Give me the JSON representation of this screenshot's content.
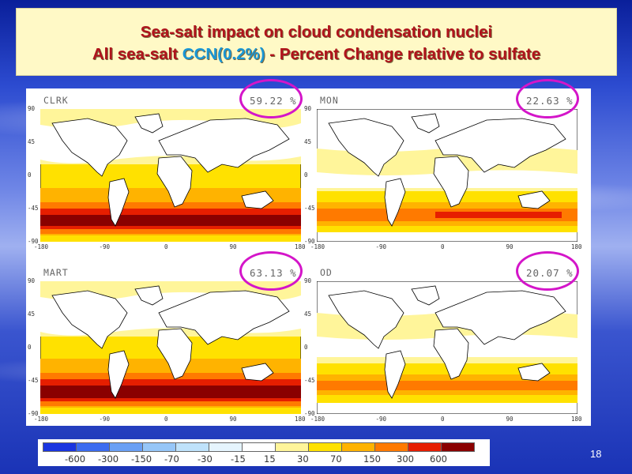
{
  "slide": {
    "title_line1": "Sea-salt impact on cloud condensation nuclei",
    "title_line2_a": "All sea-salt",
    "title_line2_b": "CCN(0.2%)",
    "title_line2_c": " - Percent Change relative to sulfate",
    "page_number": "18"
  },
  "panels": [
    {
      "label": "CLRK",
      "percent": "59.22 %",
      "intensity": "high"
    },
    {
      "label": "MON",
      "percent": "22.63 %",
      "intensity": "low"
    },
    {
      "label": "MART",
      "percent": "63.13 %",
      "intensity": "high"
    },
    {
      "label": "OD",
      "percent": "20.07 %",
      "intensity": "low"
    }
  ],
  "axes": {
    "y_ticks": [
      "90",
      "45",
      "0",
      "-45",
      "-90"
    ],
    "x_ticks": [
      "-180",
      "-90",
      "0",
      "90",
      "180"
    ]
  },
  "colorbar": {
    "labels": [
      "-600",
      "-300",
      "-150",
      "-70",
      "-30",
      "-15",
      "15",
      "30",
      "70",
      "150",
      "300",
      "600"
    ],
    "colors": [
      "#1a35e0",
      "#3c6cf0",
      "#6aa0f5",
      "#96c6f8",
      "#bfe2fb",
      "#e6f5fe",
      "#ffffff",
      "#fff59a",
      "#ffe100",
      "#ffb300",
      "#ff7a00",
      "#e61e00",
      "#8a0000"
    ]
  },
  "colors": {
    "title_text": "#b0141c",
    "title_highlight": "#1896d6",
    "highlight_ring": "#d415c9",
    "title_box": "#fff9c6"
  }
}
